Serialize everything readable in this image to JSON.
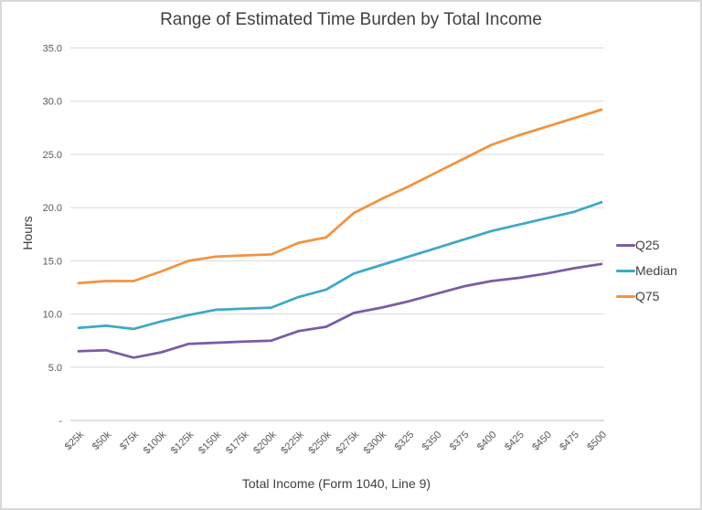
{
  "page": {
    "kind": "excel-style line chart"
  },
  "chart_data": {
    "type": "line",
    "title": "Range of Estimated Time Burden by Total Income",
    "xlabel": "Total Income (Form 1040, Line 9)",
    "ylabel": "Hours",
    "ylim": [
      0,
      35
    ],
    "ytick_step": 5,
    "ytick_labels": [
      "-",
      "5.0",
      "10.0",
      "15.0",
      "20.0",
      "25.0",
      "30.0",
      "35.0"
    ],
    "grid": true,
    "legend_position": "right",
    "categories": [
      "$25k",
      "$50k",
      "$75k",
      "$100k",
      "$125k",
      "$150k",
      "$175k",
      "$200k",
      "$225k",
      "$250k",
      "$275k",
      "$300k",
      "$325",
      "$350",
      "$375",
      "$400",
      "$425",
      "$450",
      "$475",
      "$500"
    ],
    "series": [
      {
        "name": "Q25",
        "color": "#7A5CA5",
        "values": [
          6.5,
          6.6,
          5.9,
          6.4,
          7.2,
          7.3,
          7.4,
          7.5,
          8.4,
          8.8,
          10.1,
          10.6,
          11.2,
          11.9,
          12.6,
          13.1,
          13.4,
          13.8,
          14.3,
          14.7
        ]
      },
      {
        "name": "Median",
        "color": "#3FA8C6",
        "values": [
          8.7,
          8.9,
          8.6,
          9.3,
          9.9,
          10.4,
          10.5,
          10.6,
          11.6,
          12.3,
          13.8,
          14.6,
          15.4,
          16.2,
          17.0,
          17.8,
          18.4,
          19.0,
          19.6,
          20.5
        ]
      },
      {
        "name": "Q75",
        "color": "#F5923E",
        "values": [
          12.9,
          13.1,
          13.1,
          14.0,
          15.0,
          15.4,
          15.5,
          15.6,
          16.7,
          17.2,
          19.5,
          20.8,
          22.0,
          23.3,
          24.6,
          25.9,
          26.8,
          27.6,
          28.4,
          29.2
        ]
      }
    ],
    "colors": {
      "title_text": "#404040",
      "tick_text": "#595959",
      "gridline": "#d9d9d9",
      "axis_line": "#bfbfbf"
    }
  }
}
